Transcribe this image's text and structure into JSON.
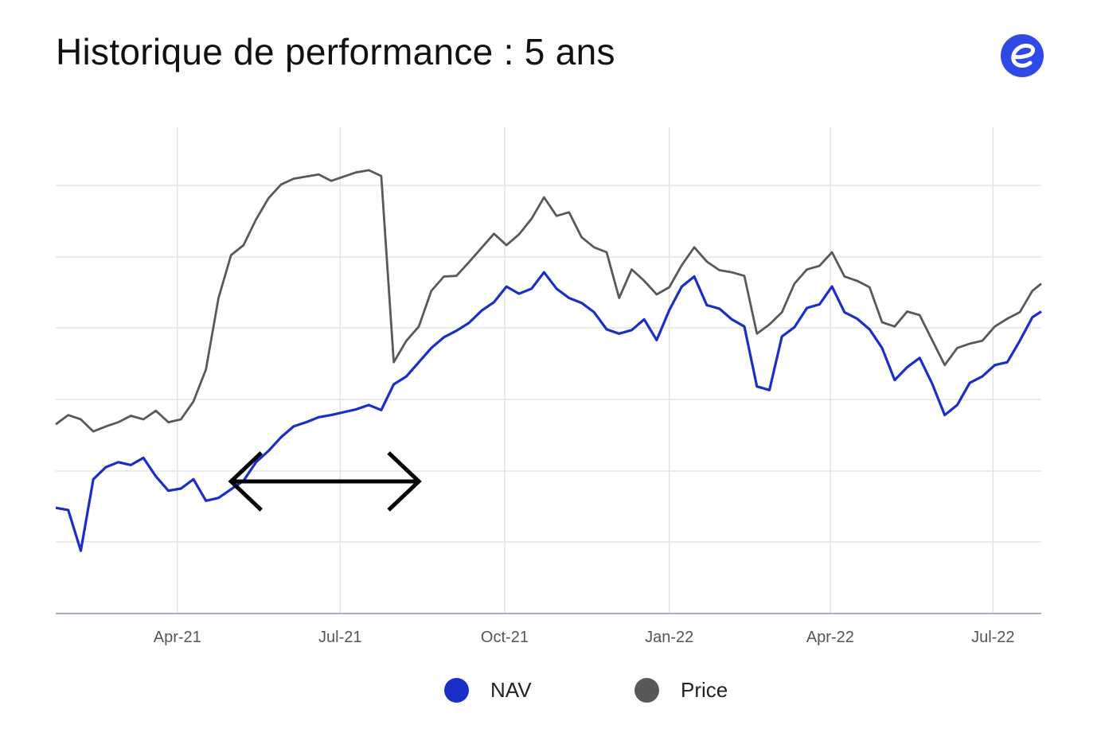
{
  "title": "Historique de performance : 5 ans",
  "logo": {
    "icon": "e-logo-icon",
    "color": "#2f49e6"
  },
  "chart_data": {
    "type": "line",
    "xlabel": "",
    "ylabel": "",
    "grid": true,
    "legend": "bottom-center",
    "x_tick_labels": [
      "Apr-21",
      "Jul-21",
      "Oct-21",
      "Jan-22",
      "Apr-22",
      "Jul-22"
    ],
    "x_tick_dates": [
      "2021-04-01",
      "2021-07-01",
      "2021-10-01",
      "2022-01-01",
      "2022-04-01",
      "2022-07-01"
    ],
    "x_range": [
      "2021-01-23",
      "2022-07-28"
    ],
    "y_tick_labels": [],
    "y_gridline_count": 7,
    "series": [
      {
        "name": "NAV",
        "color": "#1a2fc7",
        "x": [
          "2021-01-23",
          "2021-01-30",
          "2021-02-06",
          "2021-02-13",
          "2021-02-20",
          "2021-02-27",
          "2021-03-06",
          "2021-03-13",
          "2021-03-20",
          "2021-03-27",
          "2021-04-03",
          "2021-04-10",
          "2021-04-17",
          "2021-04-24",
          "2021-05-01",
          "2021-05-08",
          "2021-05-15",
          "2021-05-22",
          "2021-05-29",
          "2021-06-05",
          "2021-06-12",
          "2021-06-19",
          "2021-06-26",
          "2021-07-03",
          "2021-07-10",
          "2021-07-17",
          "2021-07-24",
          "2021-07-31",
          "2021-08-07",
          "2021-08-14",
          "2021-08-21",
          "2021-08-28",
          "2021-09-04",
          "2021-09-11",
          "2021-09-18",
          "2021-09-25",
          "2021-10-02",
          "2021-10-09",
          "2021-10-16",
          "2021-10-23",
          "2021-10-30",
          "2021-11-06",
          "2021-11-13",
          "2021-11-20",
          "2021-11-27",
          "2021-12-04",
          "2021-12-11",
          "2021-12-18",
          "2021-12-25",
          "2022-01-01",
          "2022-01-08",
          "2022-01-15",
          "2022-01-22",
          "2022-01-29",
          "2022-02-05",
          "2022-02-12",
          "2022-02-19",
          "2022-02-26",
          "2022-03-05",
          "2022-03-12",
          "2022-03-19",
          "2022-03-26",
          "2022-04-02",
          "2022-04-09",
          "2022-04-16",
          "2022-04-23",
          "2022-04-30",
          "2022-05-07",
          "2022-05-14",
          "2022-05-21",
          "2022-05-28",
          "2022-06-04",
          "2022-06-11",
          "2022-06-18",
          "2022-06-25",
          "2022-07-02",
          "2022-07-09",
          "2022-07-16",
          "2022-07-23",
          "2022-07-28"
        ],
        "values": [
          3.98,
          3.95,
          3.38,
          4.38,
          4.55,
          4.62,
          4.58,
          4.68,
          4.42,
          4.22,
          4.25,
          4.38,
          4.08,
          4.12,
          4.24,
          4.36,
          4.62,
          4.78,
          4.97,
          5.12,
          5.18,
          5.25,
          5.28,
          5.32,
          5.36,
          5.42,
          5.35,
          5.71,
          5.82,
          6.02,
          6.22,
          6.37,
          6.46,
          6.57,
          6.74,
          6.86,
          7.08,
          6.98,
          7.05,
          7.28,
          7.05,
          6.92,
          6.85,
          6.72,
          6.48,
          6.42,
          6.47,
          6.62,
          6.33,
          6.75,
          7.08,
          7.22,
          6.82,
          6.77,
          6.62,
          6.52,
          5.68,
          5.63,
          6.38,
          6.51,
          6.78,
          6.83,
          7.08,
          6.72,
          6.63,
          6.48,
          6.22,
          5.77,
          5.95,
          6.08,
          5.72,
          5.28,
          5.42,
          5.73,
          5.82,
          5.98,
          6.02,
          6.32,
          6.65,
          6.73
        ]
      },
      {
        "name": "Price",
        "color": "#595959",
        "x": [
          "2021-01-23",
          "2021-01-30",
          "2021-02-06",
          "2021-02-13",
          "2021-02-20",
          "2021-02-27",
          "2021-03-06",
          "2021-03-13",
          "2021-03-20",
          "2021-03-27",
          "2021-04-03",
          "2021-04-10",
          "2021-04-17",
          "2021-04-24",
          "2021-05-01",
          "2021-05-08",
          "2021-05-15",
          "2021-05-22",
          "2021-05-29",
          "2021-06-05",
          "2021-06-12",
          "2021-06-19",
          "2021-06-26",
          "2021-07-03",
          "2021-07-10",
          "2021-07-17",
          "2021-07-24",
          "2021-07-31",
          "2021-08-07",
          "2021-08-14",
          "2021-08-21",
          "2021-08-28",
          "2021-09-04",
          "2021-09-11",
          "2021-09-18",
          "2021-09-25",
          "2021-10-02",
          "2021-10-09",
          "2021-10-16",
          "2021-10-23",
          "2021-10-30",
          "2021-11-06",
          "2021-11-13",
          "2021-11-20",
          "2021-11-27",
          "2021-12-04",
          "2021-12-11",
          "2021-12-18",
          "2021-12-25",
          "2022-01-01",
          "2022-01-08",
          "2022-01-15",
          "2022-01-22",
          "2022-01-29",
          "2022-02-05",
          "2022-02-12",
          "2022-02-19",
          "2022-02-26",
          "2022-03-05",
          "2022-03-12",
          "2022-03-19",
          "2022-03-26",
          "2022-04-02",
          "2022-04-09",
          "2022-04-16",
          "2022-04-23",
          "2022-04-30",
          "2022-05-07",
          "2022-05-14",
          "2022-05-21",
          "2022-05-28",
          "2022-06-04",
          "2022-06-11",
          "2022-06-18",
          "2022-06-25",
          "2022-07-02",
          "2022-07-09",
          "2022-07-16",
          "2022-07-23",
          "2022-07-28"
        ],
        "values": [
          5.15,
          5.28,
          5.22,
          5.05,
          5.12,
          5.18,
          5.27,
          5.22,
          5.34,
          5.18,
          5.22,
          5.47,
          5.92,
          6.92,
          7.52,
          7.66,
          8.02,
          8.32,
          8.51,
          8.59,
          8.62,
          8.65,
          8.56,
          8.62,
          8.68,
          8.71,
          8.63,
          6.02,
          6.32,
          6.52,
          7.02,
          7.22,
          7.23,
          7.42,
          7.62,
          7.82,
          7.66,
          7.81,
          8.03,
          8.33,
          8.07,
          8.12,
          7.77,
          7.63,
          7.56,
          6.92,
          7.32,
          7.16,
          6.97,
          7.07,
          7.38,
          7.63,
          7.43,
          7.31,
          7.28,
          7.23,
          6.42,
          6.55,
          6.72,
          7.12,
          7.32,
          7.37,
          7.56,
          7.22,
          7.16,
          7.07,
          6.58,
          6.52,
          6.73,
          6.68,
          6.33,
          5.98,
          6.22,
          6.28,
          6.32,
          6.52,
          6.63,
          6.72,
          7.02,
          7.12
        ]
      }
    ],
    "annotation": {
      "type": "double-headed-arrow",
      "from": "2021-05-01",
      "to": "2021-08-14"
    }
  },
  "legend": {
    "items": [
      {
        "label": "NAV",
        "color": "#1a2fc7"
      },
      {
        "label": "Price",
        "color": "#595959"
      }
    ]
  }
}
